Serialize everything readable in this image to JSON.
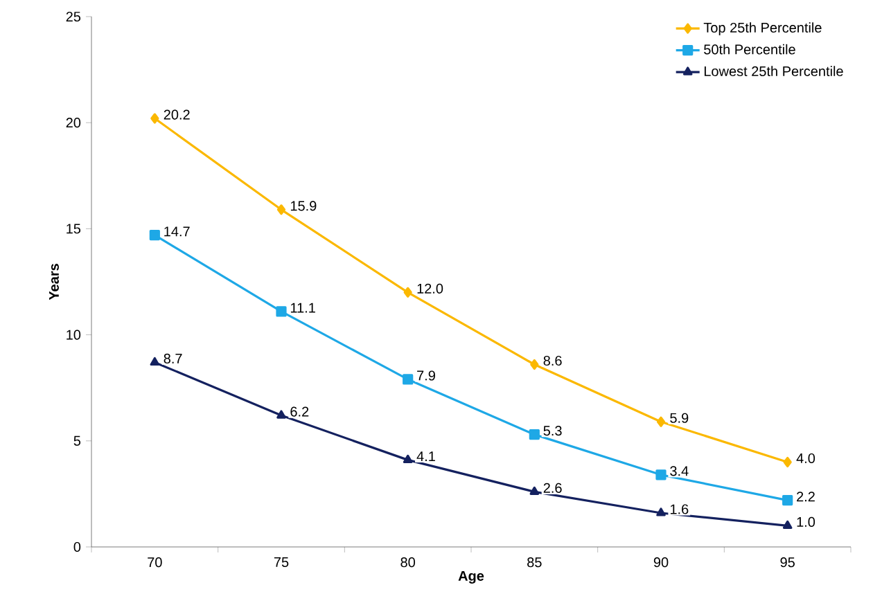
{
  "chart_data": {
    "type": "line",
    "xlabel": "Age",
    "ylabel": "Years",
    "categories": [
      "70",
      "75",
      "80",
      "85",
      "90",
      "95"
    ],
    "series": [
      {
        "name": "Top 25th Percentile",
        "color": "#fbb800",
        "marker": "diamond",
        "values": [
          20.2,
          15.9,
          12.0,
          8.6,
          5.9,
          4.0
        ],
        "value_labels": [
          "20.2",
          "15.9",
          "12.0",
          "8.6",
          "5.9",
          "4.0"
        ]
      },
      {
        "name": "50th Percentile",
        "color": "#1ea8e6",
        "marker": "square",
        "values": [
          14.7,
          11.1,
          7.9,
          5.3,
          3.4,
          2.2
        ],
        "value_labels": [
          "14.7",
          "11.1",
          "7.9",
          "5.3",
          "3.4",
          "2.2"
        ]
      },
      {
        "name": "Lowest 25th Percentile",
        "color": "#14215f",
        "marker": "triangle",
        "values": [
          8.7,
          6.2,
          4.1,
          2.6,
          1.6,
          1.0
        ],
        "value_labels": [
          "8.7",
          "6.2",
          "4.1",
          "2.6",
          "1.6",
          "1.0"
        ]
      }
    ],
    "ylim": [
      0,
      25
    ],
    "yticks": [
      0,
      5,
      10,
      15,
      20,
      25
    ],
    "grid": false,
    "legend": "top right",
    "line_style": "solid"
  }
}
